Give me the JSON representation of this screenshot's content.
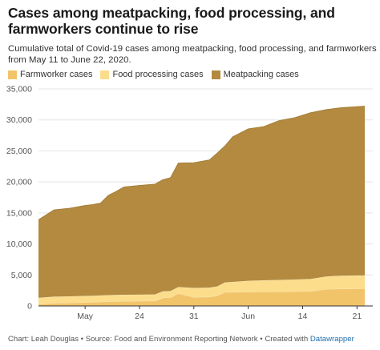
{
  "header": {
    "title": "Cases among meatpacking, food processing, and farmworkers continue to rise",
    "subtitle": "Cumulative total of Covid-19 cases among meatpacking, food processing, and farmworkers from May 11 to June 22, 2020."
  },
  "footer": {
    "chart_by": "Chart: Leah Douglas",
    "separator1": " • ",
    "source": "Source: Food and Environment Reporting Network",
    "separator2": " • ",
    "created_with": "Created with ",
    "tool": "Datawrapper"
  },
  "colors": {
    "farmworker": "#f2c46a",
    "food_processing": "#fbdd8c",
    "meatpacking": "#b38a3f",
    "grid": "#e3e3e3",
    "axis": "#333333"
  },
  "chart_data": {
    "type": "area",
    "stacked": true,
    "x_start": "2020-05-11",
    "x_end": "2020-06-22",
    "ylim": [
      0,
      35000
    ],
    "y_ticks": [
      0,
      5000,
      10000,
      15000,
      20000,
      25000,
      30000,
      35000
    ],
    "y_tick_labels": [
      "0",
      "5,000",
      "10,000",
      "15,000",
      "20,000",
      "25,000",
      "30,000",
      "35,000"
    ],
    "x_ticks": [
      {
        "date": "2020-05-17",
        "label": "May"
      },
      {
        "date": "2020-05-24",
        "label": "24"
      },
      {
        "date": "2020-05-31",
        "label": "31"
      },
      {
        "date": "2020-06-07",
        "label": "Jun"
      },
      {
        "date": "2020-06-14",
        "label": "14"
      },
      {
        "date": "2020-06-21",
        "label": "21"
      }
    ],
    "grid": true,
    "legend_position": "top-left",
    "x": [
      "2020-05-11",
      "2020-05-13",
      "2020-05-15",
      "2020-05-17",
      "2020-05-18",
      "2020-05-19",
      "2020-05-20",
      "2020-05-21",
      "2020-05-22",
      "2020-05-24",
      "2020-05-26",
      "2020-05-27",
      "2020-05-28",
      "2020-05-29",
      "2020-05-31",
      "2020-06-02",
      "2020-06-03",
      "2020-06-04",
      "2020-06-05",
      "2020-06-07",
      "2020-06-09",
      "2020-06-11",
      "2020-06-13",
      "2020-06-15",
      "2020-06-17",
      "2020-06-18",
      "2020-06-19",
      "2020-06-22"
    ],
    "series": [
      {
        "name": "Farmworker cases",
        "values": [
          300,
          450,
          500,
          560,
          600,
          650,
          700,
          720,
          750,
          780,
          800,
          1300,
          1350,
          2000,
          1400,
          1450,
          1650,
          2200,
          2220,
          2250,
          2280,
          2300,
          2320,
          2350,
          2700,
          2720,
          2750,
          2780
        ]
      },
      {
        "name": "Food processing cases",
        "values": [
          1000,
          1050,
          1050,
          1050,
          1050,
          1050,
          1050,
          1050,
          1050,
          1050,
          1050,
          1050,
          1050,
          1050,
          1500,
          1500,
          1500,
          1600,
          1650,
          1800,
          1850,
          1900,
          1950,
          2000,
          2050,
          2100,
          2120,
          2140
        ]
      },
      {
        "name": "Meatpacking cases",
        "values": [
          12600,
          14000,
          14200,
          14600,
          14700,
          14900,
          16100,
          16700,
          17400,
          17600,
          17800,
          18000,
          18300,
          20000,
          20200,
          20600,
          21500,
          22000,
          23400,
          24500,
          24800,
          25700,
          26100,
          26800,
          26900,
          27000,
          27100,
          27300
        ]
      }
    ]
  }
}
